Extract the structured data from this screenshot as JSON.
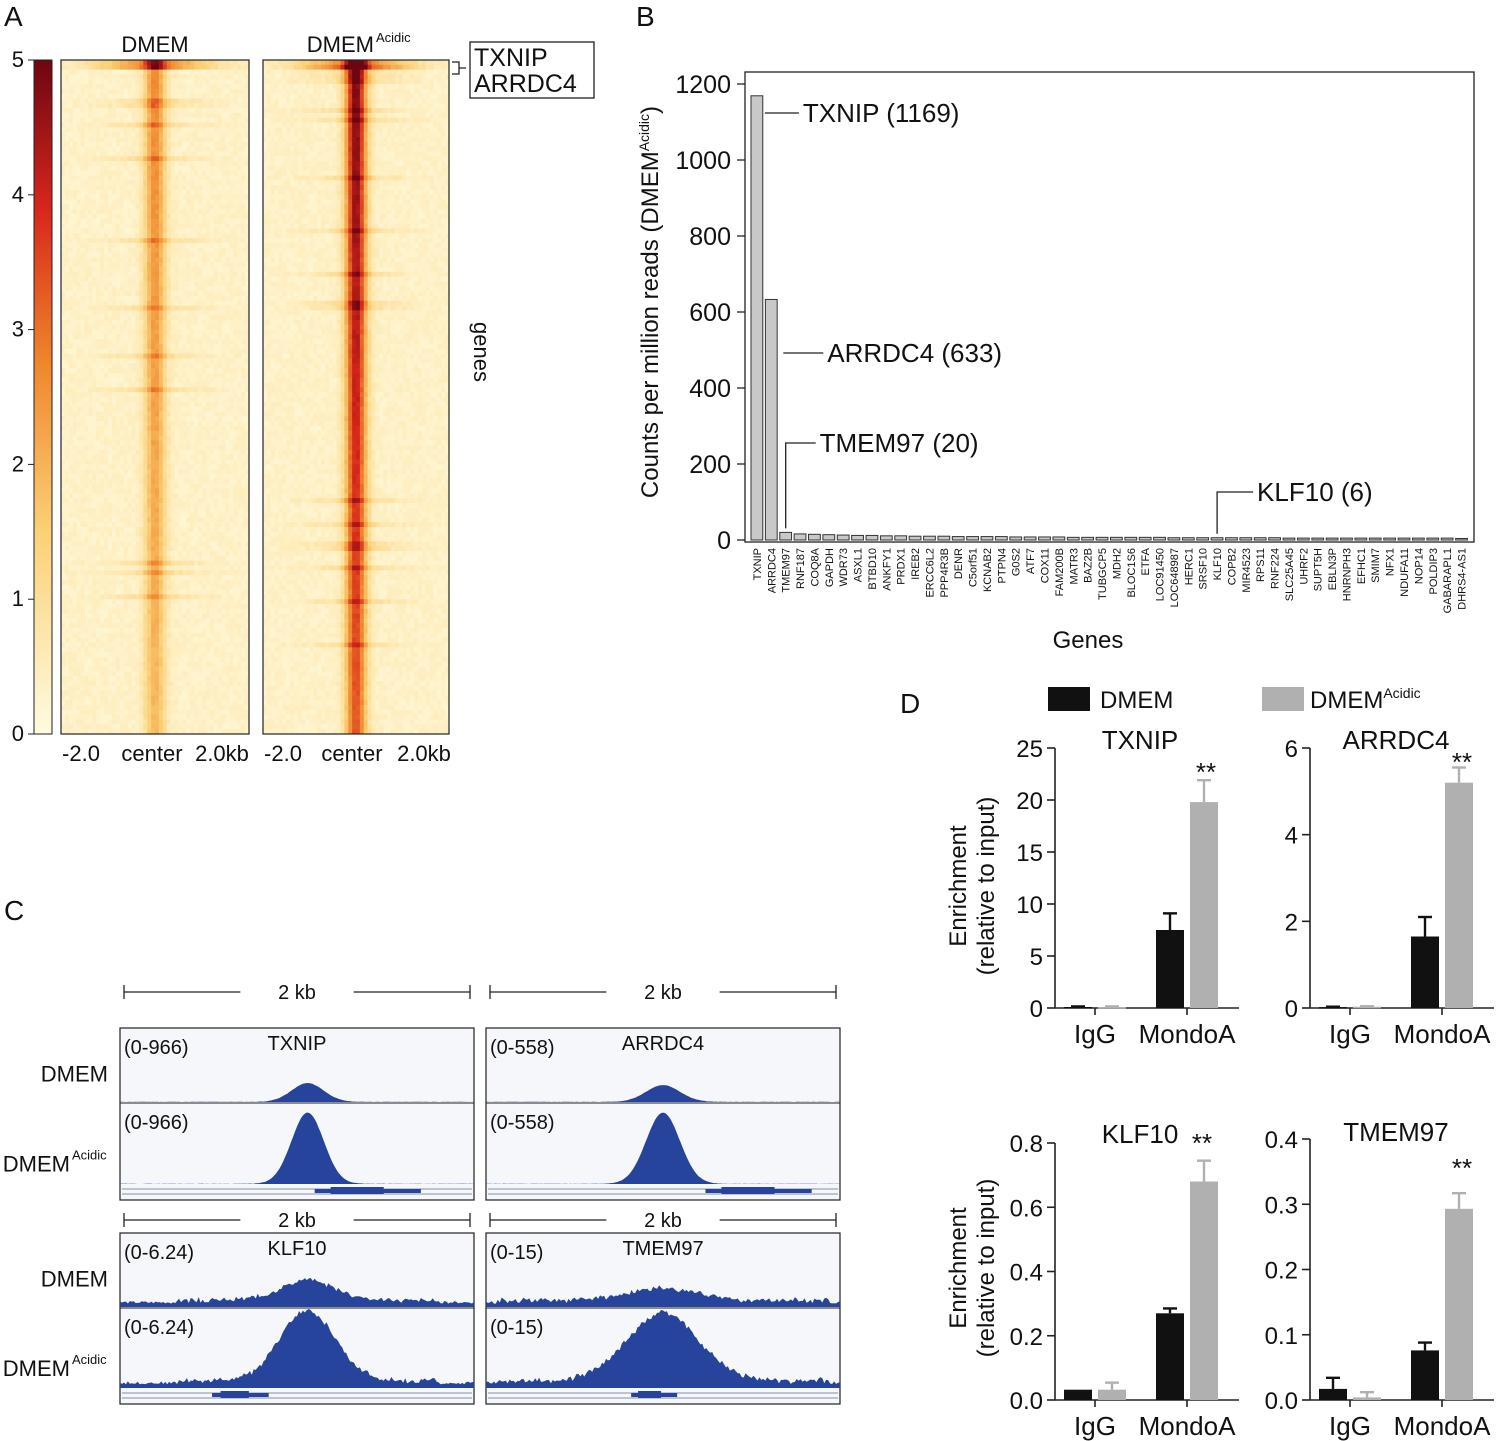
{
  "panels": {
    "a": "A",
    "b": "B",
    "c": "C",
    "d": "D"
  },
  "colors": {
    "bar_dmem": "#111111",
    "bar_acidic": "#b0b0b0",
    "bar_b": "#c8c8c8",
    "track_fill": "#27449c",
    "track_bg": "#f5f7fb",
    "heat_low": "#fdf6cf",
    "heat_mid": "#f7b04a",
    "heat_high": "#e23a1d",
    "heat_max": "#7a0a12"
  },
  "panel_a": {
    "title_left": "DMEM",
    "title_right": "DMEM",
    "title_right_sup": "Acidic",
    "colorbar_ticks": [
      "5",
      "4",
      "3",
      "2",
      "1",
      "0"
    ],
    "x_ticks_left": [
      "-2.0",
      "center",
      "2.0kb"
    ],
    "x_ticks_right": [
      "-2.0",
      "center",
      "2.0kb"
    ],
    "ylabel": "genes",
    "callout": [
      "TXNIP",
      "ARRDC4"
    ]
  },
  "panel_c": {
    "rows": [
      {
        "scale_label": "2 kb",
        "tracks": [
          {
            "gene": "TXNIP",
            "range_dmem": "(0-966)",
            "range_acidic": "(0-966)",
            "dmem_peak": 0.28,
            "acidic_peak": 0.95,
            "width": 0.095,
            "shape": "sharp"
          },
          {
            "gene": "ARRDC4",
            "range_dmem": "(0-558)",
            "range_acidic": "(0-558)",
            "dmem_peak": 0.25,
            "acidic_peak": 0.95,
            "width": 0.1,
            "shape": "sharp"
          }
        ]
      },
      {
        "scale_label": "2 kb",
        "tracks": [
          {
            "gene": "KLF10",
            "range_dmem": "(0-6.24)",
            "range_acidic": "(0-6.24)",
            "dmem_peak": 0.3,
            "acidic_peak": 0.95,
            "width": 0.14,
            "shape": "broad"
          },
          {
            "gene": "TMEM97",
            "range_dmem": "(0-15)",
            "range_acidic": "(0-15)",
            "dmem_peak": 0.18,
            "acidic_peak": 0.92,
            "width": 0.18,
            "shape": "broad"
          }
        ]
      }
    ],
    "label_dmem": "DMEM",
    "label_acidic": "DMEM",
    "label_acidic_sup": "Acidic"
  },
  "chart_data": [
    {
      "type": "heatmap",
      "panel": "A",
      "title": "DMEM vs DMEM Acidic",
      "colorbar_range": [
        0,
        5
      ],
      "x_ticks": [
        "-2.0",
        "center",
        "2.0kb"
      ],
      "ylabel": "genes",
      "n_rows": 140,
      "center_intensity_dmem": 2.4,
      "center_intensity_acidic": 4.6
    },
    {
      "type": "bar",
      "panel": "B",
      "title": "",
      "xlabel": "Genes",
      "ylabel": "Counts per million reads (DMEM",
      "ylabel_sup": "Acidic",
      "ylabel_close": ")",
      "ylim": [
        0,
        1200
      ],
      "yticks": [
        0,
        200,
        400,
        600,
        800,
        1000,
        1200
      ],
      "categories": [
        "TXNIP",
        "ARRDC4",
        "TMEM97",
        "RNF187",
        "COQ8A",
        "GAPDH",
        "WDR73",
        "ASXL1",
        "BTBD10",
        "ANKFY1",
        "PRDX1",
        "IREB2",
        "ERCC6L2",
        "PPP4R3B",
        "DENR",
        "C5orf51",
        "KCNAB2",
        "PTPN4",
        "G0S2",
        "ATF7",
        "COX11",
        "FAM200B",
        "MATR3",
        "BAZ2B",
        "TUBGCP5",
        "MDH2",
        "BLOC1S6",
        "ETFA",
        "LOC91450",
        "LOC648987",
        "HERC1",
        "SRSF10",
        "KLF10",
        "COPB2",
        "MIR4523",
        "RPS11",
        "RNF224",
        "SLC25A45",
        "UHRF2",
        "SUPT5H",
        "EBLN3P",
        "HNRNPH3",
        "EFHC1",
        "SMIM7",
        "NFX1",
        "NDUFA11",
        "NOP14",
        "POLDIP3",
        "GABARAPL1",
        "DHRS4-AS1"
      ],
      "values": [
        1169,
        633,
        20,
        16,
        15,
        14,
        13,
        12,
        12,
        11,
        11,
        10,
        10,
        10,
        9,
        9,
        9,
        9,
        8,
        8,
        8,
        8,
        7,
        7,
        7,
        7,
        7,
        7,
        7,
        6,
        6,
        6,
        6,
        6,
        6,
        6,
        6,
        5,
        5,
        5,
        5,
        5,
        5,
        5,
        5,
        5,
        5,
        5,
        5,
        4
      ],
      "annotations": [
        {
          "gene": "TXNIP",
          "text": "TXNIP (1169)"
        },
        {
          "gene": "ARRDC4",
          "text": "ARRDC4 (633)"
        },
        {
          "gene": "TMEM97",
          "text": "TMEM97 (20)"
        },
        {
          "gene": "KLF10",
          "text": "KLF10 (6)"
        }
      ]
    },
    {
      "type": "bar",
      "panel": "D",
      "title": "TXNIP",
      "ylabel": "Enrichment (relative to input)",
      "categories": [
        "IgG",
        "MondoA"
      ],
      "series": [
        {
          "name": "DMEM",
          "values": [
            0.1,
            7.5
          ],
          "errors": [
            0.05,
            1.6
          ]
        },
        {
          "name": "DMEM Acidic",
          "values": [
            0.1,
            19.8
          ],
          "errors": [
            0.05,
            2.1
          ]
        }
      ],
      "ylim": [
        0,
        25
      ],
      "yticks": [
        "0",
        "5",
        "10",
        "15",
        "20",
        "25"
      ],
      "significance": "**"
    },
    {
      "type": "bar",
      "panel": "D",
      "title": "ARRDC4",
      "ylabel": "",
      "categories": [
        "IgG",
        "MondoA"
      ],
      "series": [
        {
          "name": "DMEM",
          "values": [
            0.02,
            1.65
          ],
          "errors": [
            0.01,
            0.45
          ]
        },
        {
          "name": "DMEM Acidic",
          "values": [
            0.03,
            5.2
          ],
          "errors": [
            0.01,
            0.35
          ]
        }
      ],
      "ylim": [
        0,
        6
      ],
      "yticks": [
        "0",
        "2",
        "4",
        "6"
      ],
      "significance": "**"
    },
    {
      "type": "bar",
      "panel": "D",
      "title": "KLF10",
      "ylabel": "Enrichment (relative to input)",
      "categories": [
        "IgG",
        "MondoA"
      ],
      "series": [
        {
          "name": "DMEM",
          "values": [
            0.032,
            0.27
          ],
          "errors": [
            0.0,
            0.015
          ]
        },
        {
          "name": "DMEM Acidic",
          "values": [
            0.032,
            0.68
          ],
          "errors": [
            0.022,
            0.065
          ]
        }
      ],
      "ylim": [
        0,
        0.8
      ],
      "yticks": [
        "0.0",
        "0.2",
        "0.4",
        "0.6",
        "0.8"
      ],
      "significance": "**"
    },
    {
      "type": "bar",
      "panel": "D",
      "title": "TMEM97",
      "ylabel": "",
      "categories": [
        "IgG",
        "MondoA"
      ],
      "series": [
        {
          "name": "DMEM",
          "values": [
            0.017,
            0.076
          ],
          "errors": [
            0.017,
            0.012
          ]
        },
        {
          "name": "DMEM Acidic",
          "values": [
            0.004,
            0.293
          ],
          "errors": [
            0.008,
            0.024
          ]
        }
      ],
      "ylim": [
        0,
        0.4
      ],
      "yticks": [
        "0.0",
        "0.1",
        "0.2",
        "0.3",
        "0.4"
      ],
      "significance": "**"
    }
  ],
  "legend_d": {
    "dmem": "DMEM",
    "acidic": "DMEM",
    "acidic_sup": "Acidic"
  },
  "ylabel_d": {
    "line1": "Enrichment",
    "line2": "(relative to input)"
  }
}
